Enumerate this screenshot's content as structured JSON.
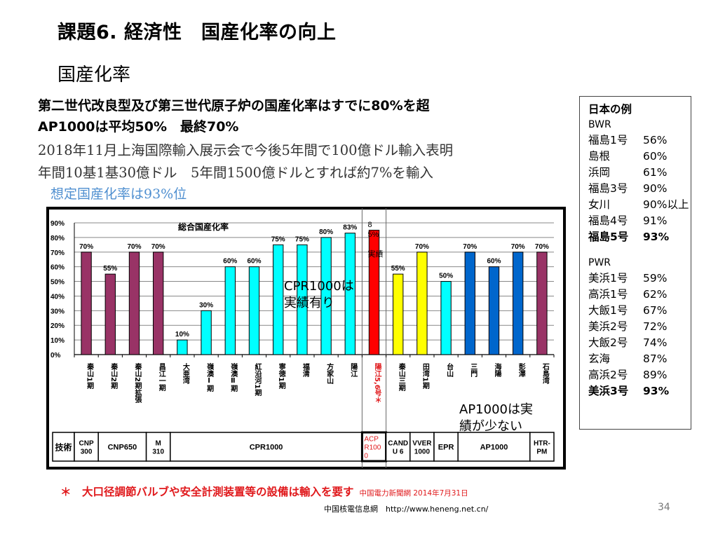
{
  "slide": {
    "title": "課題6. 経済性　国産化率の向上",
    "subtitle": "国産化率",
    "lines": [
      "第二世代改良型及び第三世代原子炉の国産化率はすでに80%を超",
      "AP1000は平均50%　最終70%",
      "2018年11月上海国際輸入展示会で今後5年間で100億ドル輸入表明",
      "年間10基1基30億ドル　5年間1500億ドルとすれば約7%を輸入",
      "想定国産化率は93%位"
    ],
    "footnote": "＊　大口径調節バルブや安全計測装置等の設備は輸入を要す",
    "footnote_source": "中国電力新聞網 2014年7月31日",
    "credit": "中国核電信息網　http://www.heneng.net.cn/",
    "page_number": "34"
  },
  "japan_examples": {
    "heading": "日本の例",
    "bwr_label": "BWR",
    "bwr": [
      {
        "name": "福島1号",
        "value": "56%"
      },
      {
        "name": "島根",
        "value": "60%"
      },
      {
        "name": "浜岡",
        "value": "61%"
      },
      {
        "name": "福島3号",
        "value": "90%"
      },
      {
        "name": "女川",
        "value": "90%以上"
      },
      {
        "name": "福島4号",
        "value": "91%"
      },
      {
        "name": "福島5号",
        "value": "93%",
        "bold": true
      }
    ],
    "pwr_label": "PWR",
    "pwr": [
      {
        "name": "美浜1号",
        "value": "59%"
      },
      {
        "name": "高浜1号",
        "value": "62%"
      },
      {
        "name": "大飯1号",
        "value": "67%"
      },
      {
        "name": "美浜2号",
        "value": "72%"
      },
      {
        "name": "大飯2号",
        "value": "74%"
      },
      {
        "name": "玄海",
        "value": "87%"
      },
      {
        "name": "高浜2号",
        "value": "89%"
      },
      {
        "name": "美浜3号",
        "value": "93%",
        "bold": true
      }
    ]
  },
  "chart_data": {
    "type": "bar",
    "title": "総合国産化率",
    "xlabel": "",
    "ylabel": "",
    "ylim": [
      0,
      90
    ],
    "yticks": [
      "0%",
      "10%",
      "20%",
      "30%",
      "40%",
      "50%",
      "60%",
      "70%",
      "80%",
      "90%"
    ],
    "grid": true,
    "categories": [
      "秦山1期",
      "秦山2期",
      "秦山2期拡張",
      "昌江一期",
      "大亜湾",
      "嶺澳Ⅰ期",
      "嶺澳Ⅱ期",
      "紅沿河1期",
      "寧徳1期",
      "福清",
      "方家山",
      "陽江",
      "陽江5,6号＊",
      "秦山三期",
      "田湾1期",
      "台山",
      "三門",
      "海陽",
      "彭澤",
      "石島湾"
    ],
    "values": [
      70,
      55,
      70,
      70,
      10,
      30,
      60,
      60,
      75,
      75,
      80,
      83,
      85,
      55,
      70,
      50,
      70,
      60,
      70,
      70
    ],
    "labels": [
      "70%",
      "55%",
      "70%",
      "70%",
      "10%",
      "30%",
      "60%",
      "60%",
      "75%",
      "75%",
      "80%",
      "83%",
      "8\n5%\n\n実績",
      "55%",
      "70%",
      "50%",
      "70%",
      "60%",
      "70%",
      "70%"
    ],
    "bar_colors": [
      "#993366",
      "#993366",
      "#993366",
      "#993366",
      "#00ffff",
      "#00ffff",
      "#00ffff",
      "#00ffff",
      "#00ffff",
      "#00ffff",
      "#00ffff",
      "#00ffff",
      "#ff0000",
      "#ffff00",
      "#ffff00",
      "#00ffff",
      "#0066cc",
      "#0066cc",
      "#0066cc",
      "#993366"
    ],
    "highlight_category_color": "#e0181b",
    "annotations": [
      "CPR1000は\n実績有り",
      "AP1000は実\n績が少ない"
    ],
    "technology_row": {
      "header": "技術",
      "groups": [
        {
          "label": "CNP\n300",
          "span": [
            0,
            0
          ]
        },
        {
          "label": "CNP650",
          "span": [
            1,
            2
          ]
        },
        {
          "label": "M\n310",
          "span": [
            3,
            3
          ]
        },
        {
          "label": "CPR1000",
          "span": [
            4,
            11
          ]
        },
        {
          "label": "ACP\nR100\n0",
          "span": [
            12,
            12
          ],
          "color": "#e0181b"
        },
        {
          "label": "CAND\nU 6",
          "span": [
            13,
            13
          ]
        },
        {
          "label": "VVER\n1000",
          "span": [
            14,
            14
          ]
        },
        {
          "label": "EPR",
          "span": [
            15,
            15
          ]
        },
        {
          "label": "AP1000",
          "span": [
            16,
            18
          ]
        },
        {
          "label": "HTR-\nPM",
          "span": [
            19,
            19
          ]
        }
      ]
    }
  }
}
